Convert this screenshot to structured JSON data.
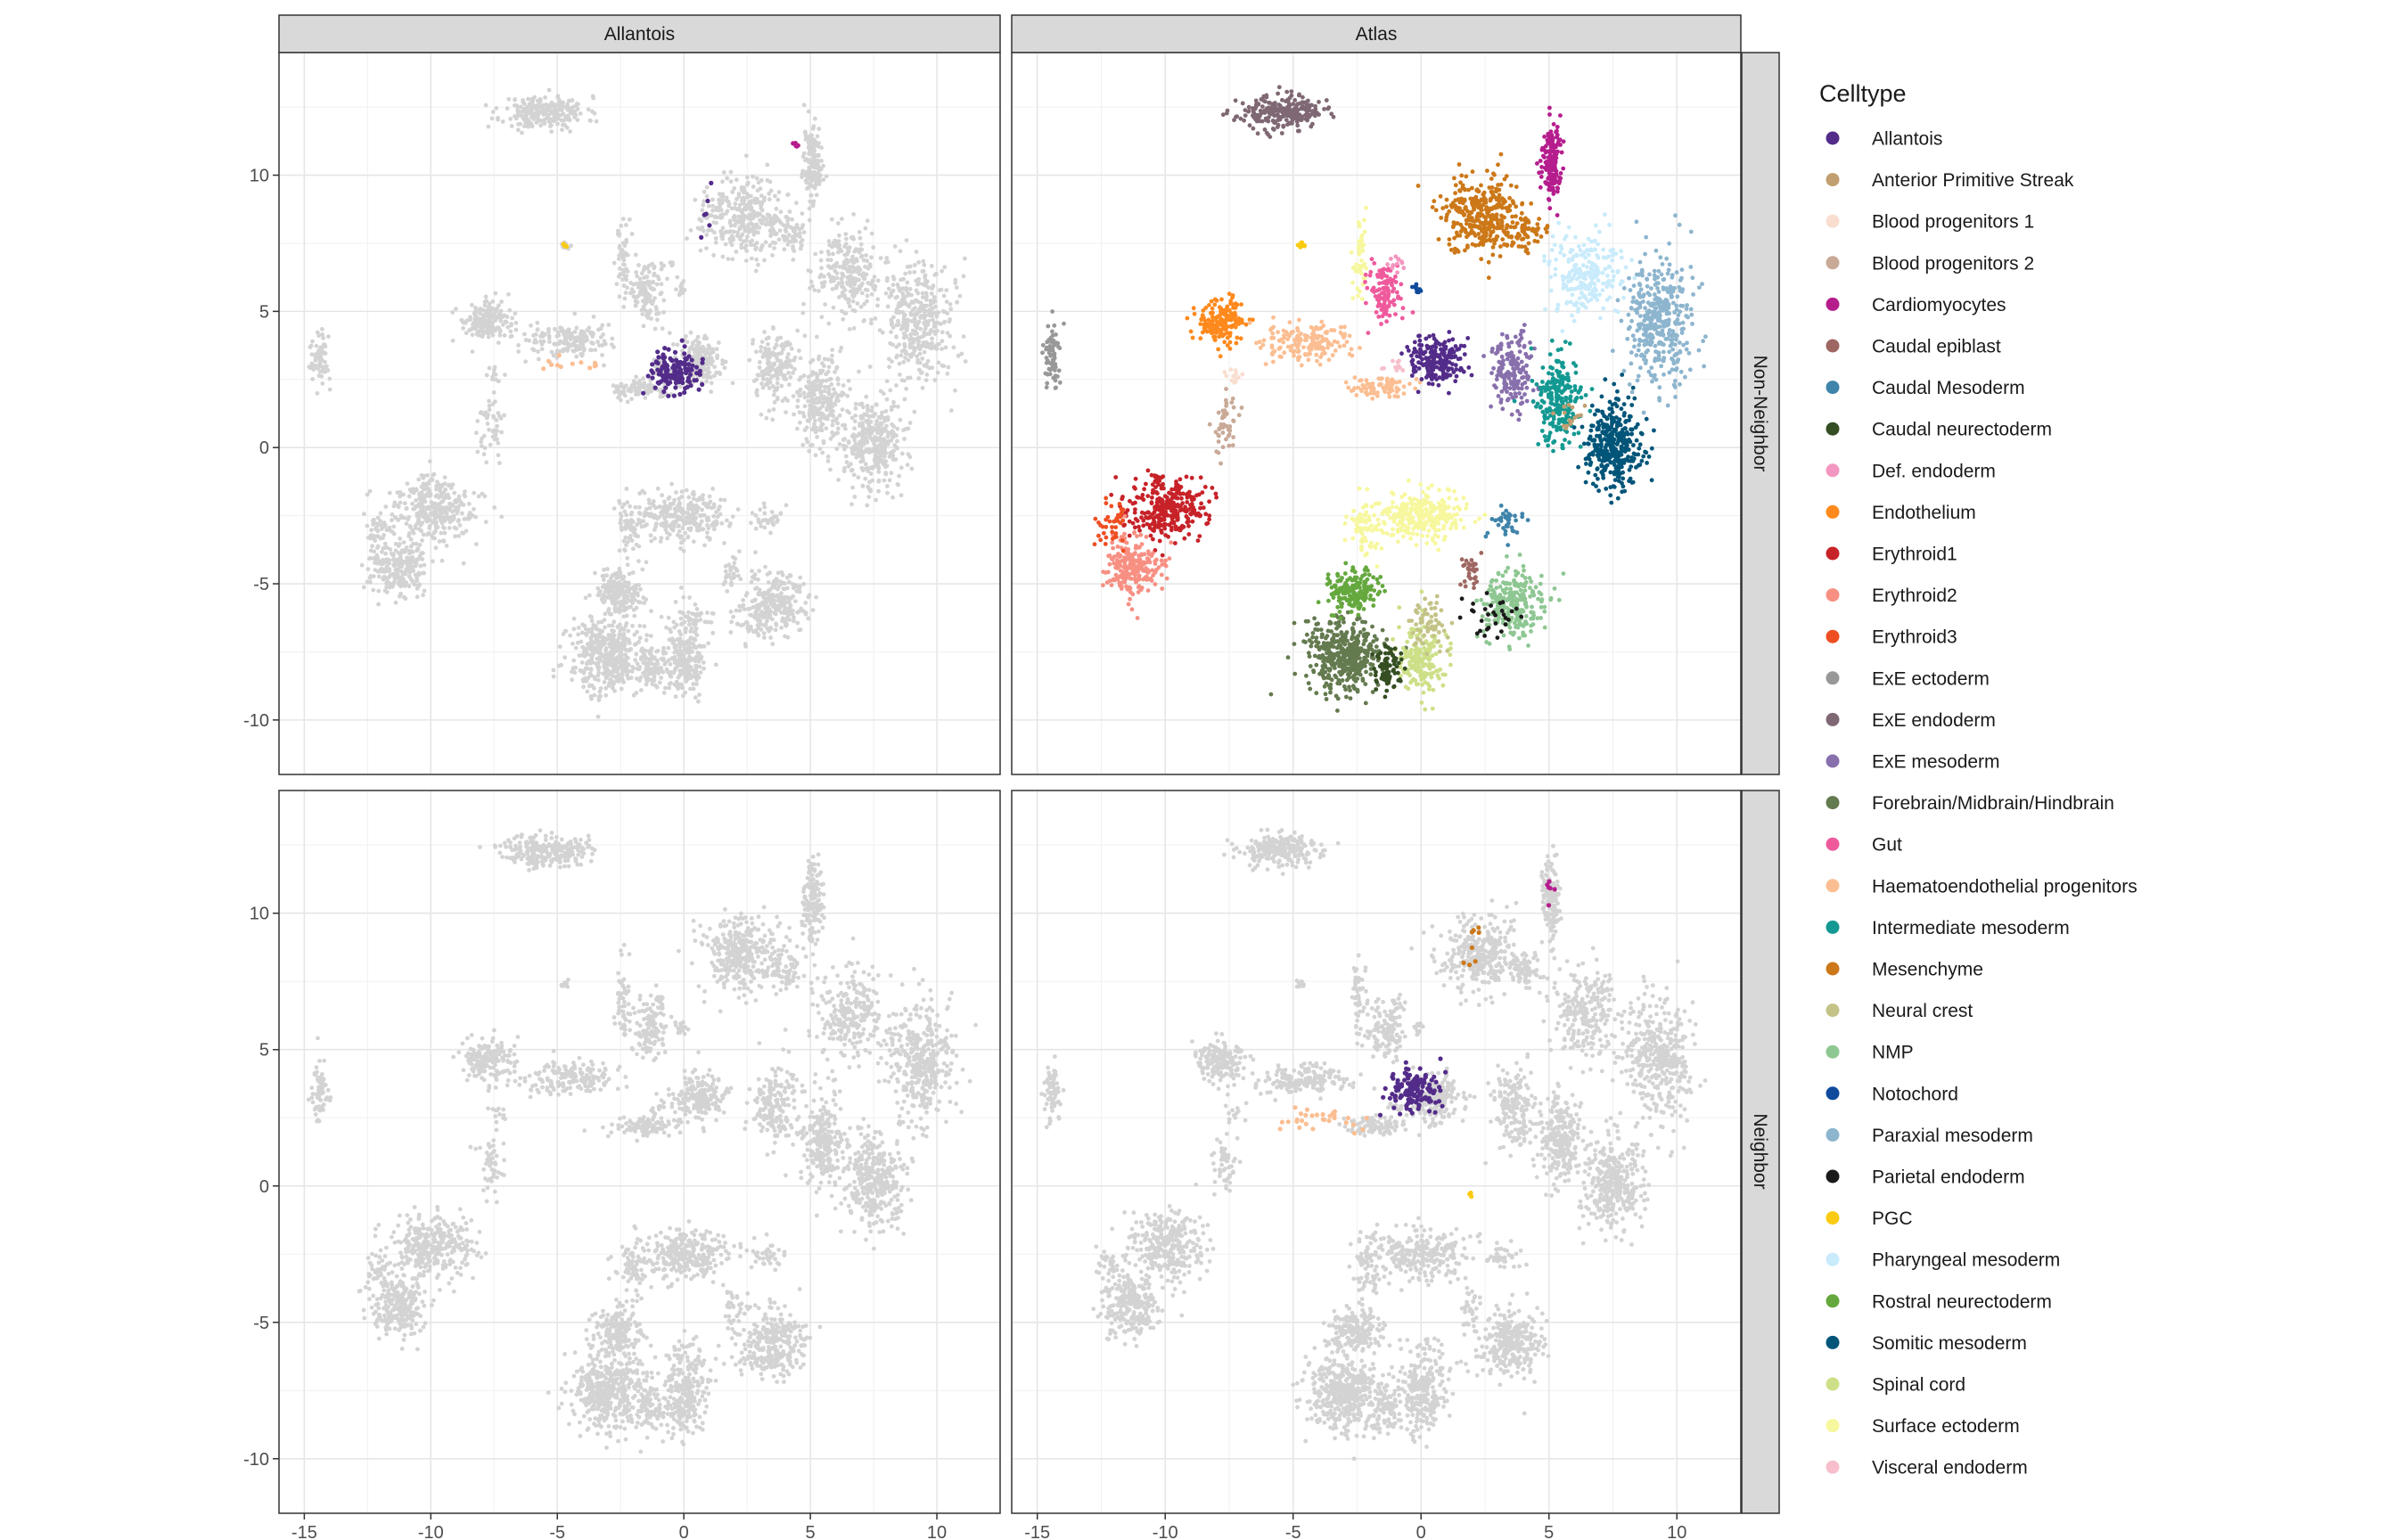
{
  "chart_data": {
    "type": "scatter",
    "title": "",
    "xlabel": "",
    "ylabel": "",
    "xlim": [
      -16,
      12.5
    ],
    "ylim": [
      -12,
      14.5
    ],
    "x_ticks": [
      -15,
      -10,
      -5,
      0,
      5,
      10
    ],
    "y_ticks": [
      -10,
      -5,
      0,
      5,
      10
    ],
    "x_tick_labels": [
      "-15",
      "-10",
      "-5",
      "0",
      "5",
      "10"
    ],
    "y_tick_labels": [
      "-10",
      "-5",
      "0",
      "5",
      "10"
    ],
    "grid": true,
    "background_color": "#d3d3d3",
    "facet_columns": [
      "Allantois",
      "Atlas"
    ],
    "facet_rows": [
      "Non-Neighbor",
      "Neighbor"
    ],
    "legend": {
      "title": "Celltype",
      "placement": "right",
      "entries": [
        {
          "name": "Allantois",
          "color": "#532c8a"
        },
        {
          "name": "Anterior Primitive Streak",
          "color": "#c19f70"
        },
        {
          "name": "Blood progenitors 1",
          "color": "#f9decf"
        },
        {
          "name": "Blood progenitors 2",
          "color": "#c9a997"
        },
        {
          "name": "Cardiomyocytes",
          "color": "#b51d8d"
        },
        {
          "name": "Caudal epiblast",
          "color": "#9e6762"
        },
        {
          "name": "Caudal Mesoderm",
          "color": "#3f84aa"
        },
        {
          "name": "Caudal neurectoderm",
          "color": "#354e23"
        },
        {
          "name": "Def. endoderm",
          "color": "#f397c0"
        },
        {
          "name": "Endothelium",
          "color": "#ff891c"
        },
        {
          "name": "Erythroid1",
          "color": "#c72228"
        },
        {
          "name": "Erythroid2",
          "color": "#f79083"
        },
        {
          "name": "Erythroid3",
          "color": "#ef4e22"
        },
        {
          "name": "ExE ectoderm",
          "color": "#989898"
        },
        {
          "name": "ExE endoderm",
          "color": "#7f6874"
        },
        {
          "name": "ExE mesoderm",
          "color": "#8870ad"
        },
        {
          "name": "Forebrain/Midbrain/Hindbrain",
          "color": "#647a4f"
        },
        {
          "name": "Gut",
          "color": "#ef5a9d"
        },
        {
          "name": "Haematoendothelial progenitors",
          "color": "#fbbe92"
        },
        {
          "name": "Intermediate mesoderm",
          "color": "#139992"
        },
        {
          "name": "Mesenchyme",
          "color": "#cc7818"
        },
        {
          "name": "Neural crest",
          "color": "#c3c388"
        },
        {
          "name": "NMP",
          "color": "#8ec792"
        },
        {
          "name": "Notochord",
          "color": "#0f4a9c"
        },
        {
          "name": "Paraxial mesoderm",
          "color": "#8db5ce"
        },
        {
          "name": "Parietal endoderm",
          "color": "#1a1a1a"
        },
        {
          "name": "PGC",
          "color": "#facb12"
        },
        {
          "name": "Pharyngeal mesoderm",
          "color": "#c9ebfb"
        },
        {
          "name": "Rostral neurectoderm",
          "color": "#65a83e"
        },
        {
          "name": "Somitic mesoderm",
          "color": "#005579"
        },
        {
          "name": "Spinal cord",
          "color": "#cde088"
        },
        {
          "name": "Surface ectoderm",
          "color": "#f7f79e"
        },
        {
          "name": "Visceral endoderm",
          "color": "#f6bfcb"
        }
      ]
    },
    "embedding_clusters": [
      {
        "celltype": "ExE endoderm",
        "center": [
          -5.5,
          12.3
        ],
        "spread": [
          1.5,
          0.55
        ],
        "n": 240
      },
      {
        "celltype": "Cardiomyocytes",
        "center": [
          5.1,
          10.5
        ],
        "spread": [
          0.35,
          1.3
        ],
        "n": 150
      },
      {
        "celltype": "Mesenchyme",
        "center": [
          2.3,
          8.5
        ],
        "spread": [
          1.4,
          1.3
        ],
        "n": 330
      },
      {
        "celltype": "Mesenchyme",
        "center": [
          4.1,
          7.9
        ],
        "spread": [
          0.6,
          0.6
        ],
        "n": 60
      },
      {
        "celltype": "Surface ectoderm",
        "center": [
          -2.4,
          6.8
        ],
        "spread": [
          0.25,
          1.4
        ],
        "n": 50
      },
      {
        "celltype": "Gut",
        "center": [
          -1.4,
          5.7
        ],
        "spread": [
          0.65,
          1.0
        ],
        "n": 110
      },
      {
        "celltype": "Notochord",
        "center": [
          -0.1,
          5.8
        ],
        "spread": [
          0.18,
          0.22
        ],
        "n": 15
      },
      {
        "celltype": "Pharyngeal mesoderm",
        "center": [
          6.5,
          6.3
        ],
        "spread": [
          1.2,
          1.5
        ],
        "n": 240
      },
      {
        "celltype": "Paraxial mesoderm",
        "center": [
          9.3,
          4.6
        ],
        "spread": [
          1.2,
          2.0
        ],
        "n": 380
      },
      {
        "celltype": "Endothelium",
        "center": [
          -7.8,
          4.6
        ],
        "spread": [
          0.9,
          0.7
        ],
        "n": 170
      },
      {
        "celltype": "Haematoendothelial progenitors",
        "center": [
          -4.5,
          3.9
        ],
        "spread": [
          1.6,
          0.55
        ],
        "n": 170
      },
      {
        "celltype": "Haematoendothelial progenitors",
        "center": [
          -1.7,
          2.2
        ],
        "spread": [
          1.1,
          0.35
        ],
        "n": 90
      },
      {
        "celltype": "ExE mesoderm",
        "center": [
          3.6,
          2.9
        ],
        "spread": [
          0.7,
          1.3
        ],
        "n": 170
      },
      {
        "celltype": "Allantois",
        "center": [
          0.6,
          3.2
        ],
        "spread": [
          0.9,
          0.8
        ],
        "n": 200
      },
      {
        "celltype": "Intermediate mesoderm",
        "center": [
          5.4,
          1.7
        ],
        "spread": [
          0.8,
          1.5
        ],
        "n": 230
      },
      {
        "celltype": "Somitic mesoderm",
        "center": [
          7.5,
          0.1
        ],
        "spread": [
          1.1,
          1.5
        ],
        "n": 340
      },
      {
        "celltype": "ExE ectoderm",
        "center": [
          -14.4,
          3.4
        ],
        "spread": [
          0.3,
          1.0
        ],
        "n": 70
      },
      {
        "celltype": "Blood progenitors 2",
        "center": [
          -7.6,
          0.8
        ],
        "spread": [
          0.4,
          1.0
        ],
        "n": 50
      },
      {
        "celltype": "Erythroid1",
        "center": [
          -9.9,
          -2.2
        ],
        "spread": [
          1.4,
          1.1
        ],
        "n": 300
      },
      {
        "celltype": "Erythroid2",
        "center": [
          -11.3,
          -4.4
        ],
        "spread": [
          1.0,
          1.0
        ],
        "n": 230
      },
      {
        "celltype": "Erythroid3",
        "center": [
          -12.1,
          -3.0
        ],
        "spread": [
          0.5,
          0.8
        ],
        "n": 40
      },
      {
        "celltype": "Surface ectoderm",
        "center": [
          0.0,
          -2.5
        ],
        "spread": [
          1.6,
          0.8
        ],
        "n": 260
      },
      {
        "celltype": "Surface ectoderm",
        "center": [
          -2.1,
          -3.0
        ],
        "spread": [
          0.6,
          1.1
        ],
        "n": 70
      },
      {
        "celltype": "NMP",
        "center": [
          3.6,
          -5.7
        ],
        "spread": [
          1.1,
          1.1
        ],
        "n": 250
      },
      {
        "celltype": "Caudal epiblast",
        "center": [
          1.9,
          -4.5
        ],
        "spread": [
          0.35,
          0.6
        ],
        "n": 30
      },
      {
        "celltype": "Caudal Mesoderm",
        "center": [
          3.3,
          -2.6
        ],
        "spread": [
          0.6,
          0.5
        ],
        "n": 35
      },
      {
        "celltype": "Forebrain/Midbrain/Hindbrain",
        "center": [
          -3.0,
          -7.6
        ],
        "spread": [
          1.3,
          1.3
        ],
        "n": 430
      },
      {
        "celltype": "Rostral neurectoderm",
        "center": [
          -2.6,
          -5.3
        ],
        "spread": [
          0.9,
          0.7
        ],
        "n": 170
      },
      {
        "celltype": "Spinal cord",
        "center": [
          0.0,
          -7.8
        ],
        "spread": [
          0.8,
          1.2
        ],
        "n": 200
      },
      {
        "celltype": "Neural crest",
        "center": [
          0.3,
          -6.4
        ],
        "spread": [
          0.8,
          0.9
        ],
        "n": 60
      },
      {
        "celltype": "Caudal neurectoderm",
        "center": [
          -1.3,
          -8.1
        ],
        "spread": [
          0.5,
          0.7
        ],
        "n": 80
      },
      {
        "celltype": "Parietal endoderm",
        "center": [
          2.7,
          -6.2
        ],
        "spread": [
          1.0,
          0.7
        ],
        "n": 30
      },
      {
        "celltype": "Anterior Primitive Streak",
        "center": [
          5.7,
          1.2
        ],
        "spread": [
          0.5,
          0.5
        ],
        "n": 15
      },
      {
        "celltype": "PGC",
        "center": [
          -4.7,
          7.4
        ],
        "spread": [
          0.15,
          0.15
        ],
        "n": 12
      },
      {
        "celltype": "Visceral endoderm",
        "center": [
          -1.0,
          3.0
        ],
        "spread": [
          0.35,
          0.35
        ],
        "n": 12
      },
      {
        "celltype": "Blood progenitors 1",
        "center": [
          -7.4,
          2.6
        ],
        "spread": [
          0.35,
          0.35
        ],
        "n": 12
      },
      {
        "celltype": "Def. endoderm",
        "center": [
          -0.9,
          6.7
        ],
        "spread": [
          0.3,
          0.3
        ],
        "n": 12
      }
    ],
    "panel_highlights": {
      "Allantois/Non-Neighbor": [
        {
          "celltype": "Allantois",
          "center": [
            -0.3,
            2.8
          ],
          "spread": [
            1.0,
            0.7
          ],
          "n": 140
        },
        {
          "celltype": "Allantois",
          "center": [
            1.0,
            8.8
          ],
          "spread": [
            0.3,
            0.9
          ],
          "n": 6
        },
        {
          "celltype": "Cardiomyocytes",
          "center": [
            4.4,
            11.1
          ],
          "spread": [
            0.12,
            0.12
          ],
          "n": 5
        },
        {
          "celltype": "Haematoendothelial progenitors",
          "center": [
            -4.2,
            3.0
          ],
          "spread": [
            1.4,
            0.5
          ],
          "n": 12
        },
        {
          "celltype": "PGC",
          "center": [
            -4.7,
            7.4
          ],
          "spread": [
            0.12,
            0.12
          ],
          "n": 3
        }
      ],
      "Allantois/Neighbor": [],
      "Atlas/Non-Neighbor": "all",
      "Atlas/Neighbor": [
        {
          "celltype": "Allantois",
          "center": [
            -0.2,
            3.5
          ],
          "spread": [
            1.0,
            0.7
          ],
          "n": 130
        },
        {
          "celltype": "Haematoendothelial progenitors",
          "center": [
            -3.9,
            2.4
          ],
          "spread": [
            1.5,
            0.4
          ],
          "n": 30
        },
        {
          "celltype": "Mesenchyme",
          "center": [
            2.0,
            8.8
          ],
          "spread": [
            0.5,
            1.0
          ],
          "n": 8
        },
        {
          "celltype": "Cardiomyocytes",
          "center": [
            5.0,
            11.0
          ],
          "spread": [
            0.2,
            0.8
          ],
          "n": 6
        },
        {
          "celltype": "PGC",
          "center": [
            1.9,
            -0.3
          ],
          "spread": [
            0.12,
            0.12
          ],
          "n": 3
        }
      ]
    }
  }
}
